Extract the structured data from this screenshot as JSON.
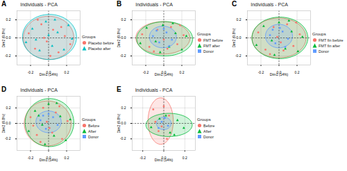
{
  "chart_data": [
    {
      "type": "scatter",
      "panel": "A",
      "title": "Individuals - PCA",
      "x_label": "Dim1 (14%)",
      "y_label": "Dim2 (9.8%)",
      "legend_title": "Groups",
      "grid": true,
      "xlim": [
        -0.35,
        0.35
      ],
      "ylim": [
        -0.3,
        0.3
      ],
      "xticks": [
        {
          "value": -0.2,
          "label": "-0.2"
        },
        {
          "value": 0,
          "label": "0.0"
        },
        {
          "value": 0.2,
          "label": "0.2"
        }
      ],
      "yticks": [
        {
          "value": -0.2,
          "label": "-0.2"
        },
        {
          "value": 0,
          "label": "0.0"
        },
        {
          "value": 0.2,
          "label": "0.2"
        }
      ],
      "series": [
        {
          "name": "Placebo before",
          "color": "#F8766D",
          "marker": "circle",
          "x": [
            -0.22,
            -0.15,
            -0.08,
            -0.02,
            0.05,
            0.11,
            0.18,
            0.24,
            -0.12,
            0.02,
            0.14,
            -0.05
          ],
          "y": [
            0.05,
            -0.12,
            0.15,
            -0.04,
            0.09,
            -0.16,
            0.02,
            -0.07,
            0.2,
            -0.2,
            0.12,
            0.0
          ],
          "ellipse": {
            "cx": 0,
            "cy": 0,
            "rx": 0.28,
            "ry": 0.24
          }
        },
        {
          "name": "Placebo after",
          "color": "#00BFC4",
          "marker": "triangle",
          "x": [
            -0.25,
            -0.18,
            -0.1,
            -0.03,
            0.04,
            0.1,
            0.17,
            0.22,
            -0.14,
            0.07,
            0.0,
            0.26
          ],
          "y": [
            -0.05,
            0.1,
            -0.14,
            0.18,
            -0.09,
            0.06,
            -0.13,
            0.14,
            -0.02,
            0.2,
            0.03,
            -0.01
          ],
          "ellipse": {
            "cx": 0.01,
            "cy": 0.01,
            "rx": 0.3,
            "ry": 0.25
          }
        }
      ]
    },
    {
      "type": "scatter",
      "panel": "B",
      "title": "Individuals - PCA",
      "x_label": "Dim1 (14%)",
      "y_label": "Dim2 (9.8%)",
      "legend_title": "Groups",
      "grid": true,
      "xlim": [
        -0.35,
        0.35
      ],
      "ylim": [
        -0.3,
        0.3
      ],
      "xticks": [
        {
          "value": -0.2,
          "label": "-0.2"
        },
        {
          "value": 0,
          "label": "0.0"
        },
        {
          "value": 0.2,
          "label": "0.2"
        }
      ],
      "yticks": [
        {
          "value": -0.2,
          "label": "-0.2"
        },
        {
          "value": 0,
          "label": "0.0"
        },
        {
          "value": 0.2,
          "label": "0.2"
        }
      ],
      "series": [
        {
          "name": "FMT before",
          "color": "#F8766D",
          "marker": "circle",
          "x": [
            -0.24,
            -0.16,
            -0.07,
            0.0,
            0.08,
            0.15,
            0.22,
            -0.11,
            0.04,
            0.18
          ],
          "y": [
            0.04,
            -0.1,
            0.09,
            -0.02,
            0.12,
            -0.07,
            0.03,
            -0.15,
            -0.12,
            0.14
          ],
          "ellipse": {
            "cx": -0.01,
            "cy": 0.0,
            "rx": 0.3,
            "ry": 0.18
          }
        },
        {
          "name": "FMT after",
          "color": "#00BA38",
          "marker": "triangle",
          "x": [
            -0.26,
            -0.19,
            -0.09,
            -0.01,
            0.06,
            0.13,
            0.2,
            0.25,
            -0.04,
            0.1
          ],
          "y": [
            -0.06,
            0.11,
            -0.04,
            0.14,
            -0.1,
            0.05,
            -0.13,
            0.02,
            -0.16,
            0.16
          ],
          "ellipse": {
            "cx": 0.01,
            "cy": -0.01,
            "rx": 0.31,
            "ry": 0.19
          }
        },
        {
          "name": "Donor",
          "color": "#619CFF",
          "marker": "square",
          "x": [
            -0.12,
            -0.05,
            0.03,
            0.09,
            0.0,
            -0.08,
            0.06
          ],
          "y": [
            0.02,
            -0.05,
            0.06,
            -0.02,
            0.1,
            0.08,
            -0.09
          ],
          "ellipse": {
            "cx": -0.01,
            "cy": 0.01,
            "rx": 0.15,
            "ry": 0.12
          }
        }
      ]
    },
    {
      "type": "scatter",
      "panel": "C",
      "title": "Individuals - PCA",
      "x_label": "Dim1 (14%)",
      "y_label": "Dim2 (9.8%)",
      "legend_title": "Groups",
      "grid": true,
      "xlim": [
        -0.35,
        0.35
      ],
      "ylim": [
        -0.3,
        0.3
      ],
      "xticks": [
        {
          "value": -0.2,
          "label": "-0.2"
        },
        {
          "value": 0,
          "label": "0.0"
        },
        {
          "value": 0.2,
          "label": "0.2"
        }
      ],
      "yticks": [
        {
          "value": -0.2,
          "label": "-0.2"
        },
        {
          "value": 0,
          "label": "0.0"
        },
        {
          "value": 0.2,
          "label": "0.2"
        }
      ],
      "series": [
        {
          "name": "FMT fin before",
          "color": "#F8766D",
          "marker": "circle",
          "x": [
            -0.23,
            -0.15,
            -0.06,
            0.02,
            0.09,
            0.16,
            0.23,
            -0.1,
            0.05,
            0.19,
            -0.02
          ],
          "y": [
            0.06,
            -0.13,
            0.12,
            -0.05,
            0.15,
            -0.09,
            0.04,
            -0.18,
            -0.14,
            0.17,
            0.01
          ],
          "ellipse": {
            "cx": 0.0,
            "cy": 0.0,
            "rx": 0.3,
            "ry": 0.22
          }
        },
        {
          "name": "FMT fin after",
          "color": "#00BA38",
          "marker": "triangle",
          "x": [
            -0.25,
            -0.17,
            -0.08,
            0.0,
            0.07,
            0.14,
            0.21,
            0.26,
            -0.05,
            0.11
          ],
          "y": [
            -0.08,
            0.13,
            -0.03,
            0.17,
            -0.12,
            0.07,
            -0.15,
            0.01,
            -0.19,
            0.19
          ],
          "ellipse": {
            "cx": 0.01,
            "cy": 0.0,
            "rx": 0.31,
            "ry": 0.23
          }
        },
        {
          "name": "Donor",
          "color": "#619CFF",
          "marker": "square",
          "x": [
            -0.1,
            -0.04,
            0.04,
            0.1,
            0.01,
            -0.07,
            0.07
          ],
          "y": [
            0.03,
            -0.06,
            0.07,
            -0.01,
            0.11,
            0.09,
            -0.1
          ],
          "ellipse": {
            "cx": 0.0,
            "cy": 0.02,
            "rx": 0.15,
            "ry": 0.13
          }
        }
      ]
    },
    {
      "type": "scatter",
      "panel": "D",
      "title": "Individuals - PCA",
      "x_label": "Dim1 (14%)",
      "y_label": "Dim2 (9.8%)",
      "legend_title": "Groups",
      "grid": true,
      "xlim": [
        -0.35,
        0.35
      ],
      "ylim": [
        -0.35,
        0.35
      ],
      "xticks": [
        {
          "value": -0.2,
          "label": "-0.2"
        },
        {
          "value": 0,
          "label": "0.0"
        },
        {
          "value": 0.2,
          "label": "0.2"
        }
      ],
      "yticks": [
        {
          "value": -0.2,
          "label": "-0.2"
        },
        {
          "value": 0,
          "label": "0.0"
        },
        {
          "value": 0.2,
          "label": "0.2"
        }
      ],
      "series": [
        {
          "name": "Before",
          "color": "#F8766D",
          "marker": "circle",
          "x": [
            -0.2,
            -0.13,
            -0.06,
            0.01,
            0.08,
            0.15,
            0.21,
            -0.09,
            0.04,
            0.12,
            -0.02,
            -0.17
          ],
          "y": [
            0.08,
            -0.15,
            0.2,
            -0.06,
            0.14,
            -0.2,
            0.03,
            -0.24,
            -0.12,
            0.22,
            0.02,
            -0.03
          ],
          "ellipse": {
            "cx": -0.01,
            "cy": 0.0,
            "rx": 0.26,
            "ry": 0.29
          }
        },
        {
          "name": "After",
          "color": "#00BA38",
          "marker": "triangle",
          "x": [
            -0.22,
            -0.15,
            -0.07,
            0.0,
            0.06,
            0.13,
            0.19,
            0.24,
            -0.04,
            0.09,
            -0.11
          ],
          "y": [
            -0.1,
            0.16,
            -0.02,
            0.25,
            -0.16,
            0.09,
            -0.22,
            0.05,
            -0.27,
            0.26,
            0.1
          ],
          "ellipse": {
            "cx": 0.01,
            "cy": 0.01,
            "rx": 0.27,
            "ry": 0.31
          }
        },
        {
          "name": "Donor",
          "color": "#619CFF",
          "marker": "square",
          "x": [
            -0.09,
            -0.03,
            0.05,
            0.1,
            0.0,
            -0.06
          ],
          "y": [
            0.04,
            -0.07,
            0.08,
            -0.02,
            0.12,
            0.1
          ],
          "ellipse": {
            "cx": 0.0,
            "cy": 0.02,
            "rx": 0.14,
            "ry": 0.14
          }
        }
      ]
    },
    {
      "type": "scatter",
      "panel": "E",
      "title": "Individuals - PCA",
      "x_label": "Dim1 (14%)",
      "y_label": "Dim2 (9.8%)",
      "legend_title": "Groups",
      "grid": true,
      "xlim": [
        -0.3,
        0.3
      ],
      "ylim": [
        -0.35,
        0.35
      ],
      "xticks": [
        {
          "value": -0.2,
          "label": "-0.2"
        },
        {
          "value": 0,
          "label": "0.0"
        },
        {
          "value": 0.2,
          "label": "0.2"
        }
      ],
      "yticks": [
        {
          "value": -0.2,
          "label": "-0.2"
        },
        {
          "value": 0,
          "label": "0.0"
        },
        {
          "value": 0.2,
          "label": "0.2"
        }
      ],
      "series": [
        {
          "name": "Before",
          "color": "#F8766D",
          "marker": "circle",
          "x": [
            -0.1,
            -0.05,
            0.0,
            0.03,
            -0.08,
            0.05,
            -0.02
          ],
          "y": [
            0.18,
            -0.1,
            0.22,
            -0.2,
            0.02,
            0.1,
            -0.04
          ],
          "ellipse": {
            "cx": -0.03,
            "cy": 0.03,
            "rx": 0.12,
            "ry": 0.3
          }
        },
        {
          "name": "After",
          "color": "#00BA38",
          "marker": "triangle",
          "x": [
            -0.12,
            -0.04,
            0.06,
            0.13,
            0.19,
            0.02,
            0.1
          ],
          "y": [
            -0.05,
            0.06,
            -0.12,
            0.04,
            -0.06,
            0.1,
            -0.15
          ],
          "ellipse": {
            "cx": 0.05,
            "cy": -0.02,
            "rx": 0.22,
            "ry": 0.15
          }
        },
        {
          "name": "Donor",
          "color": "#619CFF",
          "marker": "square",
          "x": [
            -0.02,
            0.04,
            0.01,
            -0.05
          ],
          "y": [
            0.02,
            -0.03,
            0.07,
            -0.06
          ],
          "ellipse": {
            "cx": 0.0,
            "cy": 0.0,
            "rx": 0.07,
            "ry": 0.08
          }
        }
      ]
    }
  ]
}
